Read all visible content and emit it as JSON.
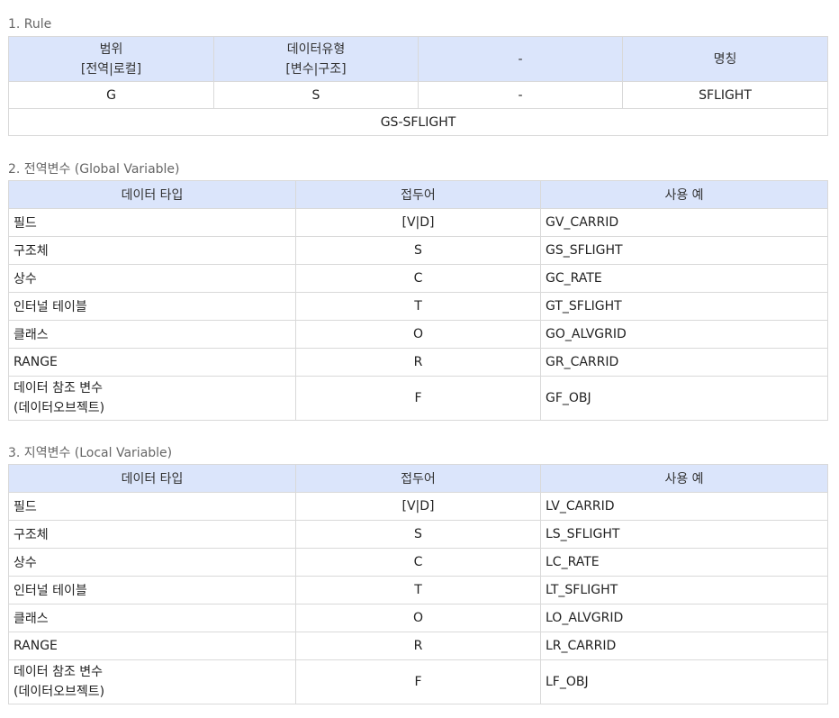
{
  "sections": {
    "rule": {
      "title": "1. Rule",
      "headers": [
        {
          "line1": "범위",
          "line2": "[전역|로컬]"
        },
        {
          "line1": "데이터유형",
          "line2": "[변수|구조]"
        },
        {
          "line1": "-",
          "line2": ""
        },
        {
          "line1": "명칭",
          "line2": ""
        }
      ],
      "row": [
        "G",
        "S",
        "-",
        "SFLIGHT"
      ],
      "example": "GS-SFLIGHT"
    },
    "global": {
      "title": "2. 전역변수 (Global Variable)",
      "headers": [
        "데이터 타입",
        "접두어",
        "사용 예"
      ],
      "rows": [
        {
          "type": "필드",
          "type2": "",
          "prefix": "[V|D]",
          "example": "GV_CARRID"
        },
        {
          "type": "구조체",
          "type2": "",
          "prefix": "S",
          "example": "GS_SFLIGHT"
        },
        {
          "type": "상수",
          "type2": "",
          "prefix": "C",
          "example": "GC_RATE"
        },
        {
          "type": "인터널 테이블",
          "type2": "",
          "prefix": "T",
          "example": "GT_SFLIGHT"
        },
        {
          "type": "클래스",
          "type2": "",
          "prefix": "O",
          "example": "GO_ALVGRID"
        },
        {
          "type": "RANGE",
          "type2": "",
          "prefix": "R",
          "example": "GR_CARRID"
        },
        {
          "type": "데이터 참조 변수",
          "type2": "(데이터오브젝트)",
          "prefix": "F",
          "example": "GF_OBJ"
        }
      ]
    },
    "local": {
      "title": "3. 지역변수 (Local Variable)",
      "headers": [
        "데이터 타입",
        "접두어",
        "사용 예"
      ],
      "rows": [
        {
          "type": "필드",
          "type2": "",
          "prefix": "[V|D]",
          "example": "LV_CARRID"
        },
        {
          "type": "구조체",
          "type2": "",
          "prefix": "S",
          "example": "LS_SFLIGHT"
        },
        {
          "type": "상수",
          "type2": "",
          "prefix": "C",
          "example": "LC_RATE"
        },
        {
          "type": "인터널 테이블",
          "type2": "",
          "prefix": "T",
          "example": "LT_SFLIGHT"
        },
        {
          "type": "클래스",
          "type2": "",
          "prefix": "O",
          "example": "LO_ALVGRID"
        },
        {
          "type": "RANGE",
          "type2": "",
          "prefix": "R",
          "example": "LR_CARRID"
        },
        {
          "type": "데이터 참조 변수",
          "type2": "(데이터오브젝트)",
          "prefix": "F",
          "example": "LF_OBJ"
        }
      ]
    }
  },
  "colors": {
    "header_bg": "#dbe5fb",
    "border": "#d9d9d9",
    "title": "#666666"
  }
}
